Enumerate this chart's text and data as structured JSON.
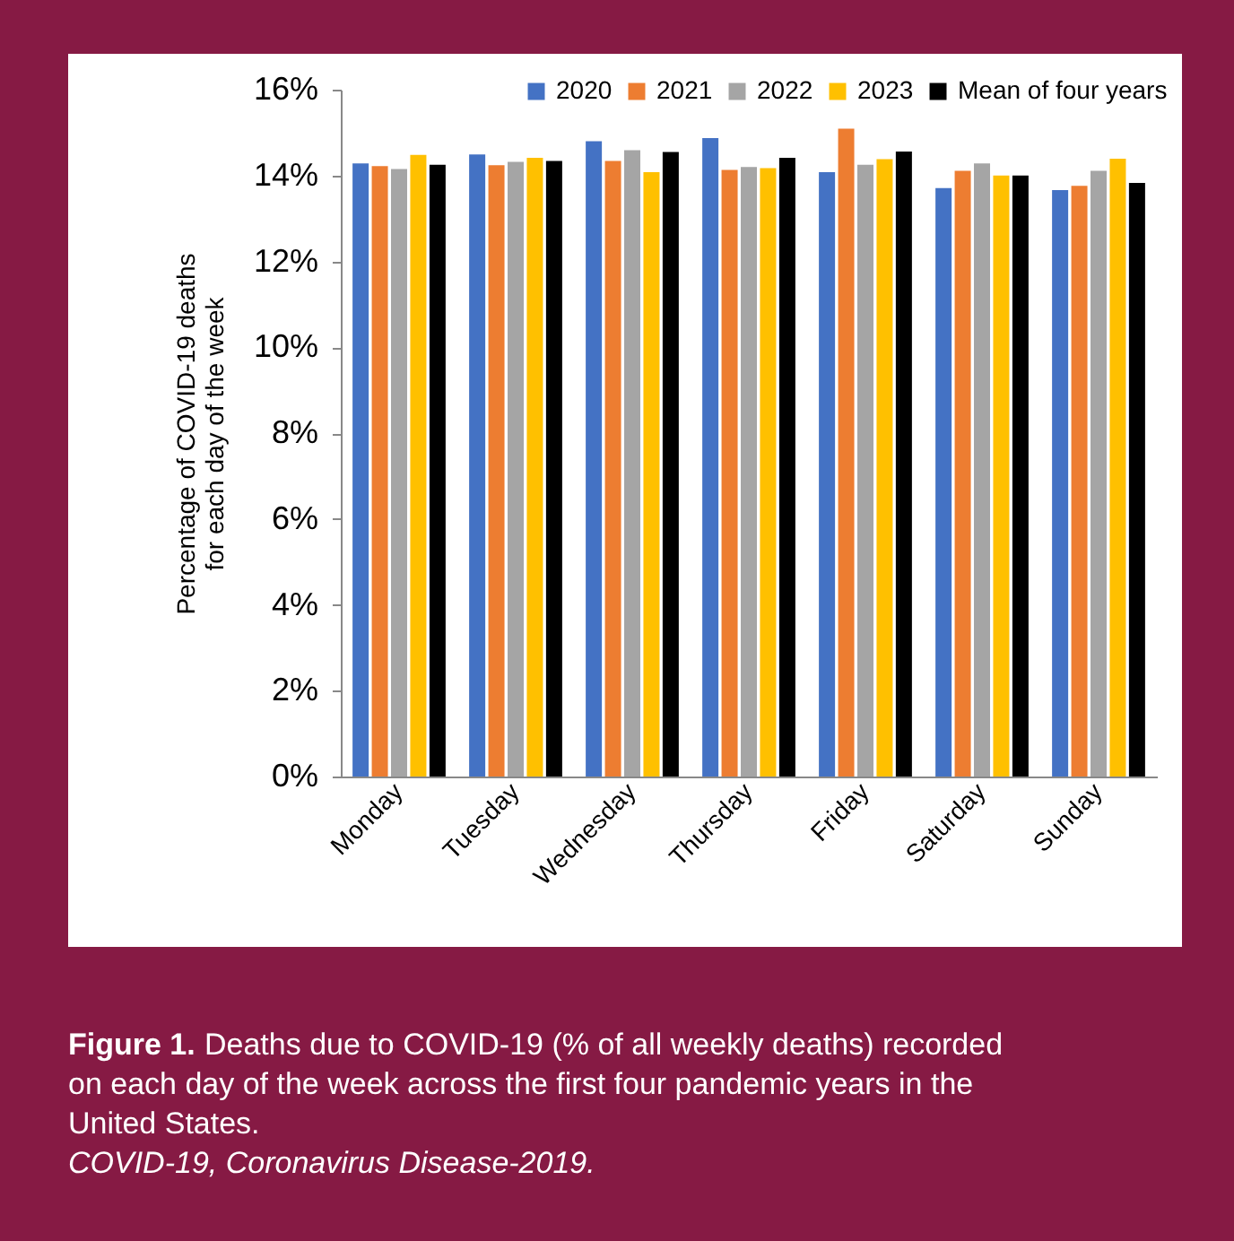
{
  "chart_data": {
    "type": "bar",
    "title": "Figure 1.",
    "subtitle": "Deaths due to COVID-19 (% of all weekly deaths) recorded on each day of the week across the first four pandemic years in the United States.",
    "ylabel": "Percentage of COVID-19 deaths\nfor each day of the week",
    "annotations": [
      "COVID-19, Coronavirus Disease-2019."
    ],
    "categories": [
      "Monday",
      "Tuesday",
      "Wednesday",
      "Thursday",
      "Friday",
      "Saturday",
      "Sunday"
    ],
    "series": [
      {
        "name": "2020",
        "color": "#4472c4",
        "values": [
          14.28,
          14.49,
          14.8,
          14.87,
          14.08,
          13.71,
          13.66
        ]
      },
      {
        "name": "2021",
        "color": "#ed7d31",
        "values": [
          14.22,
          14.24,
          14.34,
          14.13,
          15.09,
          14.11,
          13.76
        ]
      },
      {
        "name": "2022",
        "color": "#a5a5a5",
        "values": [
          14.15,
          14.32,
          14.59,
          14.2,
          14.25,
          14.28,
          14.11
        ]
      },
      {
        "name": "2023",
        "color": "#ffc000",
        "values": [
          14.48,
          14.41,
          14.08,
          14.17,
          14.38,
          14.0,
          14.39
        ]
      },
      {
        "name": "Mean of four years",
        "color": "#000000",
        "values": [
          14.25,
          14.34,
          14.55,
          14.41,
          14.56,
          14.0,
          13.83
        ]
      }
    ],
    "ylim": [
      0,
      16
    ],
    "yticks": [
      {
        "value": 0,
        "label": "0%"
      },
      {
        "value": 2,
        "label": "2%"
      },
      {
        "value": 4,
        "label": "4%"
      },
      {
        "value": 6,
        "label": "6%"
      },
      {
        "value": 8,
        "label": "8%"
      },
      {
        "value": 10,
        "label": "10%"
      },
      {
        "value": 12,
        "label": "12%"
      },
      {
        "value": 14,
        "label": "14%"
      },
      {
        "value": 16,
        "label": "16%"
      }
    ],
    "grid": false,
    "legend": "top right"
  }
}
